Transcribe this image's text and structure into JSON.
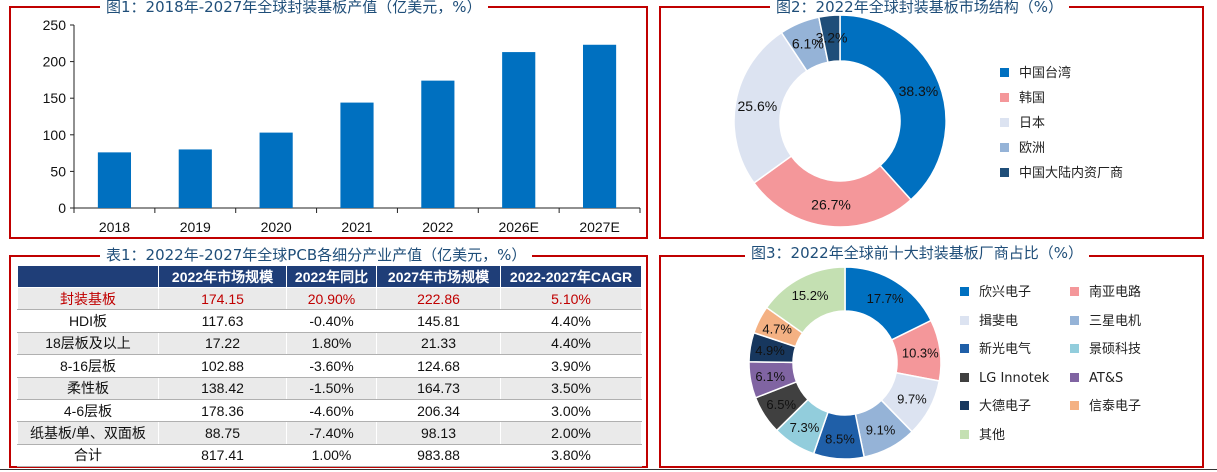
{
  "fig1": {
    "title": "图1：2018年-2027年全球封装基板产值（亿美元，%）",
    "chart_data": {
      "type": "bar",
      "categories": [
        "2018",
        "2019",
        "2020",
        "2021",
        "2022",
        "2026E",
        "2027E"
      ],
      "values": [
        76,
        80,
        103,
        144,
        174,
        213,
        223
      ],
      "ylim": [
        0,
        250
      ],
      "yticks": [
        "0",
        "50",
        "100",
        "150",
        "200",
        "250"
      ],
      "color": "#0070c0"
    }
  },
  "fig2": {
    "title": "图2：2022年全球封装基板市场结构（%）",
    "chart_data": {
      "type": "pie",
      "donut": true,
      "slices": [
        {
          "name": "中国台湾",
          "value": 38.3,
          "label": "38.3%",
          "color": "#0070c0"
        },
        {
          "name": "韩国",
          "value": 26.7,
          "label": "26.7%",
          "color": "#f4979a"
        },
        {
          "name": "日本",
          "value": 25.6,
          "label": "25.6%",
          "color": "#dce3f1"
        },
        {
          "name": "欧洲",
          "value": 6.1,
          "label": "6.1%",
          "color": "#95b3d7"
        },
        {
          "name": "中国大陆内资厂商",
          "value": 3.2,
          "label": "3.2%",
          "color": "#1f4e79"
        }
      ]
    }
  },
  "table": {
    "title": "表1：2022年-2027年全球PCB各细分产业产值（亿美元，%）",
    "headers": [
      "",
      "2022年市场规模",
      "2022年同比",
      "2027年市场规模",
      "2022-2027年CAGR"
    ],
    "rows": [
      [
        "封装基板",
        "174.15",
        "20.90%",
        "222.86",
        "5.10%"
      ],
      [
        "HDI板",
        "117.63",
        "-0.40%",
        "145.81",
        "4.40%"
      ],
      [
        "18层板及以上",
        "17.22",
        "1.80%",
        "21.33",
        "4.40%"
      ],
      [
        "8-16层板",
        "102.88",
        "-3.60%",
        "124.68",
        "3.90%"
      ],
      [
        "柔性板",
        "138.42",
        "-1.50%",
        "164.73",
        "3.50%"
      ],
      [
        "4-6层板",
        "178.36",
        "-4.60%",
        "206.34",
        "3.00%"
      ],
      [
        "纸基板/单、双面板",
        "88.75",
        "-7.40%",
        "98.13",
        "2.00%"
      ],
      [
        "合计",
        "817.41",
        "1.00%",
        "983.88",
        "3.80%"
      ]
    ]
  },
  "fig3": {
    "title": "图3：2022年全球前十大封装基板厂商占比（%）",
    "chart_data": {
      "type": "pie",
      "donut": true,
      "slices": [
        {
          "name": "欣兴电子",
          "value": 17.7,
          "label": "17.7%",
          "color": "#0070c0"
        },
        {
          "name": "南亚电路",
          "value": 10.3,
          "label": "10.3%",
          "color": "#f4979a"
        },
        {
          "name": "揖斐电",
          "value": 9.7,
          "label": "9.7%",
          "color": "#dce3f1"
        },
        {
          "name": "三星电机",
          "value": 9.1,
          "label": "9.1%",
          "color": "#95b3d7"
        },
        {
          "name": "新光电气",
          "value": 8.5,
          "label": "8.5%",
          "color": "#1f5fa8"
        },
        {
          "name": "景硕科技",
          "value": 7.3,
          "label": "7.3%",
          "color": "#92cddc"
        },
        {
          "name": "LG Innotek",
          "value": 6.5,
          "label": "6.5%",
          "color": "#404040"
        },
        {
          "name": "AT&S",
          "value": 6.1,
          "label": "6.1%",
          "color": "#8064a2"
        },
        {
          "name": "大德电子",
          "value": 4.9,
          "label": "4.9%",
          "color": "#17375e"
        },
        {
          "name": "信泰电子",
          "value": 4.7,
          "label": "4.7%",
          "color": "#f4b183"
        },
        {
          "name": "其他",
          "value": 15.2,
          "label": "15.2%",
          "color": "#c4e0b2"
        }
      ]
    }
  }
}
